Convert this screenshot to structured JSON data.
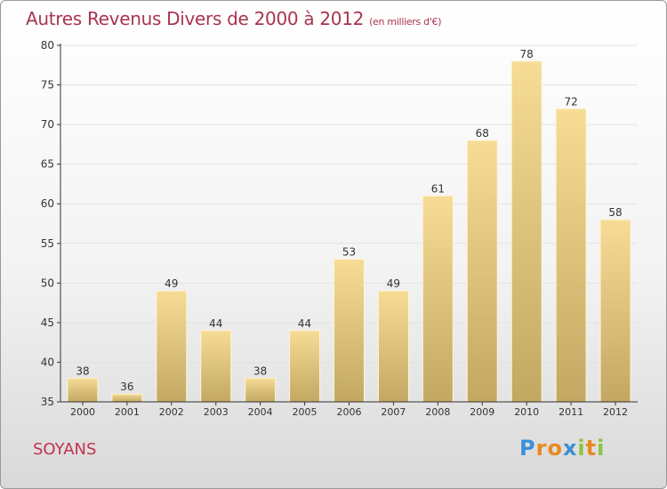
{
  "header": {
    "title": "Autres Revenus Divers de 2000 à 2012",
    "unit": "(en milliers d'€)"
  },
  "footer": {
    "commune": "SOYANS",
    "logo": {
      "letters": [
        "P",
        "r",
        "o",
        "x",
        "i",
        "t",
        "i"
      ],
      "colors": [
        "#3b8fd6",
        "#e98a1e",
        "#e98a1e",
        "#3b8fd6",
        "#8cc43f",
        "#e98a1e",
        "#8cc43f"
      ]
    }
  },
  "chart_data": {
    "type": "bar",
    "categories": [
      "2000",
      "2001",
      "2002",
      "2003",
      "2004",
      "2005",
      "2006",
      "2007",
      "2008",
      "2009",
      "2010",
      "2011",
      "2012"
    ],
    "values": [
      38,
      36,
      49,
      44,
      38,
      44,
      53,
      49,
      61,
      68,
      78,
      72,
      58
    ],
    "data_labels": [
      "38",
      "36",
      "49",
      "44",
      "38",
      "44",
      "53",
      "49",
      "61",
      "68",
      "78",
      "72",
      "58"
    ],
    "yticks": [
      35,
      40,
      45,
      50,
      55,
      60,
      65,
      70,
      75,
      80
    ],
    "ylim": [
      35,
      80
    ],
    "grid": true,
    "colors": {
      "bar_light": "#f7dc96",
      "bar_dark": "#c2a862",
      "axis": "#333333",
      "grid": "#e2e2e2"
    }
  }
}
